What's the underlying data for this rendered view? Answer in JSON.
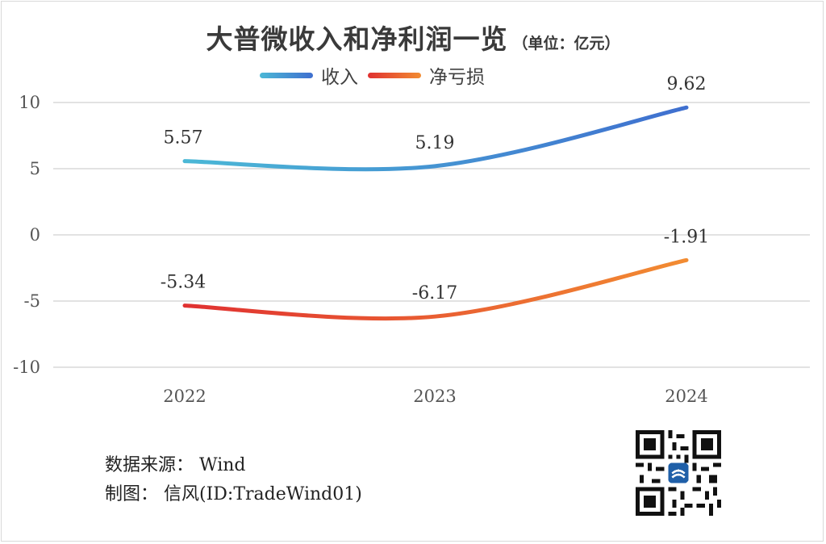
{
  "title": "大普微收入和净利润一览",
  "unit": "（单位：亿元）",
  "footer": {
    "source": "数据来源：  Wind",
    "author": "制图：  信风(ID:TradeWind01)"
  },
  "colors": {
    "revenue_start": "#4bb8d6",
    "revenue_end": "#3f6fcf",
    "loss_start": "#e03131",
    "loss_end": "#f28c32",
    "grid": "#d9d9d9"
  },
  "chart_data": {
    "type": "line",
    "x": [
      "2022",
      "2023",
      "2024"
    ],
    "series": [
      {
        "name": "收入",
        "values": [
          5.57,
          5.19,
          9.62
        ]
      },
      {
        "name": "净亏损",
        "values": [
          -5.34,
          -6.17,
          -1.91
        ]
      }
    ],
    "ylim": [
      -10,
      10
    ],
    "yticks": [
      10,
      5,
      0,
      -5,
      -10
    ],
    "grid": true,
    "legend": "top-center",
    "smooth": true
  }
}
